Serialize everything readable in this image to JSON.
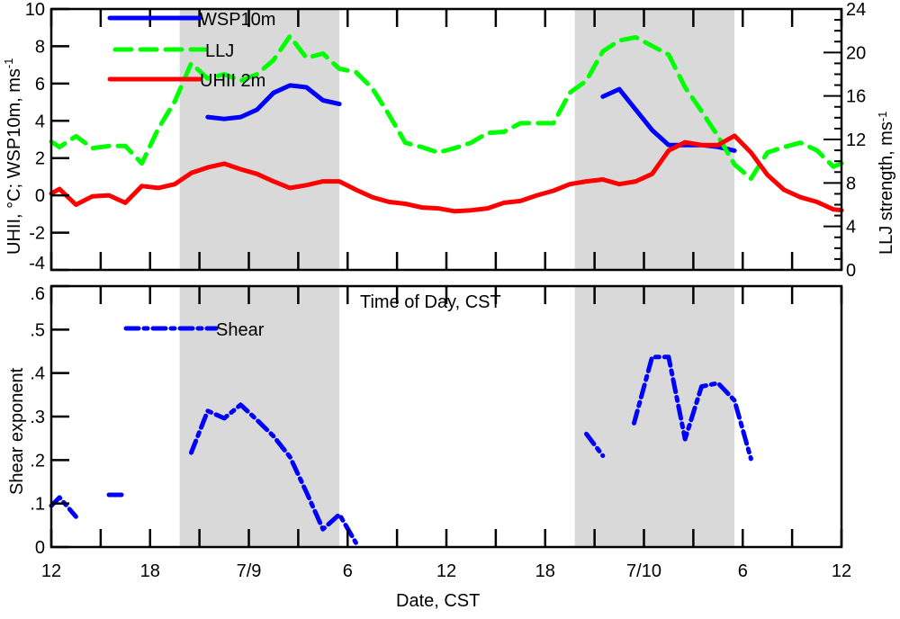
{
  "chart_data": [
    {
      "type": "line",
      "panel": "top",
      "xlabel_inner": "Time of Day, CST",
      "ylabel": "UHII, °C; WSP10m, ms",
      "ylabel_sup": "-1",
      "y2label": "LLJ strength, ms",
      "y2label_sup": "-1",
      "ylim": [
        -4,
        10
      ],
      "yticks": [
        "-4",
        "-2",
        "0",
        "2",
        "4",
        "6",
        "8",
        "10"
      ],
      "y2lim": [
        0,
        24
      ],
      "y2ticks": [
        "0",
        "4",
        "8",
        "12",
        "16",
        "20",
        "24"
      ],
      "x_units": "hours since 12 CST 7/8",
      "xlim": [
        0,
        48
      ],
      "night_shading": [
        [
          7.8,
          17.5
        ],
        [
          31.8,
          41.5
        ]
      ],
      "shade_color": "#d9d9d9",
      "legend_position": "top-left",
      "series": [
        {
          "name": "WSP10m",
          "axis": "left",
          "color": "#0000ff",
          "style": "solid",
          "segments": [
            {
              "x": [
                9.5,
                10.5,
                11.5,
                12.5,
                13.5,
                14.5,
                15.5,
                16.5,
                17.5
              ],
              "y": [
                4.2,
                4.1,
                4.2,
                4.6,
                5.5,
                5.9,
                5.8,
                5.1,
                4.9
              ]
            },
            {
              "x": [
                33.5,
                34.5,
                35.5,
                36.5,
                37.5,
                38.5,
                39.5,
                40.5,
                41.5
              ],
              "y": [
                5.3,
                5.7,
                4.6,
                3.5,
                2.7,
                2.7,
                2.7,
                2.6,
                2.4
              ]
            }
          ]
        },
        {
          "name": "LLJ",
          "axis": "right",
          "color": "#00ff00",
          "style": "dashed",
          "segments": [
            {
              "x": [
                0,
                0.5,
                1.5,
                2.5,
                3.5,
                4.5,
                5.5,
                6.5,
                7.5,
                8.5,
                9.5,
                10.5,
                11.5,
                12.5,
                13.5,
                14.5,
                15.5,
                16.5,
                17.5,
                18.5,
                19.5,
                20.5,
                21.5,
                22.5,
                23.5,
                24.5,
                25.5,
                26.5,
                27.5,
                28.5,
                29.5,
                30.5,
                31.5,
                32.5,
                33.5,
                34.5,
                35.5,
                36.5,
                37.5,
                38.5,
                39.5,
                40.5,
                41.5,
                42.5,
                43.5,
                44.5,
                45.5,
                46.5,
                47.5,
                48
              ],
              "y": [
                11.8,
                11.3,
                12.3,
                11.2,
                11.4,
                11.4,
                9.8,
                13.0,
                15.5,
                19.0,
                17.6,
                18.0,
                17.4,
                18.0,
                19.3,
                21.5,
                19.5,
                19.9,
                18.5,
                18.2,
                16.7,
                14.3,
                11.7,
                11.3,
                10.8,
                11.2,
                11.7,
                12.6,
                12.7,
                13.5,
                13.5,
                13.5,
                16.3,
                17.4,
                20.1,
                21.1,
                21.4,
                20.6,
                19.8,
                16.8,
                14.6,
                12.3,
                9.7,
                8.4,
                10.8,
                11.3,
                11.7,
                11.0,
                9.5,
                9.8
              ]
            }
          ]
        },
        {
          "name": "UHII 2m",
          "axis": "left",
          "color": "#ff0000",
          "style": "solid",
          "segments": [
            {
              "x": [
                0,
                0.5,
                1.5,
                2.5,
                3.5,
                4.5,
                5.5,
                6.5,
                7.5,
                8.5,
                9.5,
                10.5,
                11.5,
                12.5,
                13.5,
                14.5,
                15.5,
                16.5,
                17.5,
                18.5,
                19.5,
                20.5,
                21.5,
                22.5,
                23.5,
                24.5,
                25.5,
                26.5,
                27.5,
                28.5,
                29.5,
                30.5,
                31.5,
                32.5,
                33.5,
                34.5,
                35.5,
                36.5,
                37.5,
                38.5,
                39.5,
                40.5,
                41.5,
                42.5,
                43.5,
                44.5,
                45.5,
                46.5,
                47.5,
                48
              ],
              "y": [
                0.1,
                0.34,
                -0.5,
                -0.05,
                0.0,
                -0.4,
                0.5,
                0.4,
                0.6,
                1.2,
                1.5,
                1.7,
                1.4,
                1.15,
                0.75,
                0.4,
                0.55,
                0.75,
                0.75,
                0.3,
                -0.1,
                -0.35,
                -0.45,
                -0.65,
                -0.7,
                -0.85,
                -0.8,
                -0.7,
                -0.4,
                -0.3,
                0.0,
                0.25,
                0.6,
                0.75,
                0.85,
                0.6,
                0.75,
                1.15,
                2.4,
                2.85,
                2.7,
                2.7,
                3.2,
                2.3,
                1.1,
                0.3,
                -0.1,
                -0.35,
                -0.75,
                -0.8
              ]
            }
          ]
        }
      ]
    },
    {
      "type": "line",
      "panel": "bottom",
      "xlabel": "Date, CST",
      "xticks": [
        "12",
        "18",
        "7/9",
        "6",
        "12",
        "18",
        "7/10",
        "6",
        "12"
      ],
      "ylabel": "Shear exponent",
      "ylim": [
        0,
        0.6
      ],
      "yticks": [
        "0",
        ".1",
        ".2",
        ".3",
        ".4",
        ".5",
        ".6"
      ],
      "xlim": [
        0,
        48
      ],
      "night_shading": [
        [
          7.8,
          17.5
        ],
        [
          31.8,
          41.5
        ]
      ],
      "legend_position": "top-left",
      "series": [
        {
          "name": "Shear",
          "color": "#0000ff",
          "style": "dash-dot",
          "segments": [
            {
              "x": [
                0,
                0.5,
                1.5
              ],
              "y": [
                0.095,
                0.114,
                0.07
              ]
            },
            {
              "x": [
                3.5,
                4.4
              ],
              "y": [
                0.12,
                0.12
              ]
            },
            {
              "x": [
                8.5,
                9.5,
                10.5,
                11.5,
                12.5,
                13.5,
                14.5,
                15.5,
                16.5,
                17.5,
                18.5
              ],
              "y": [
                0.217,
                0.313,
                0.296,
                0.327,
                0.292,
                0.255,
                0.207,
                0.126,
                0.041,
                0.075,
                0.01
              ]
            },
            {
              "x": [
                32.5,
                33.5
              ],
              "y": [
                0.26,
                0.21
              ]
            },
            {
              "x": [
                35.4,
                36.5,
                37.5,
                38.5,
                39.5,
                40.5,
                41.5,
                42.5
              ],
              "y": [
                0.285,
                0.437,
                0.437,
                0.248,
                0.369,
                0.377,
                0.337,
                0.203
              ]
            }
          ]
        }
      ]
    }
  ]
}
